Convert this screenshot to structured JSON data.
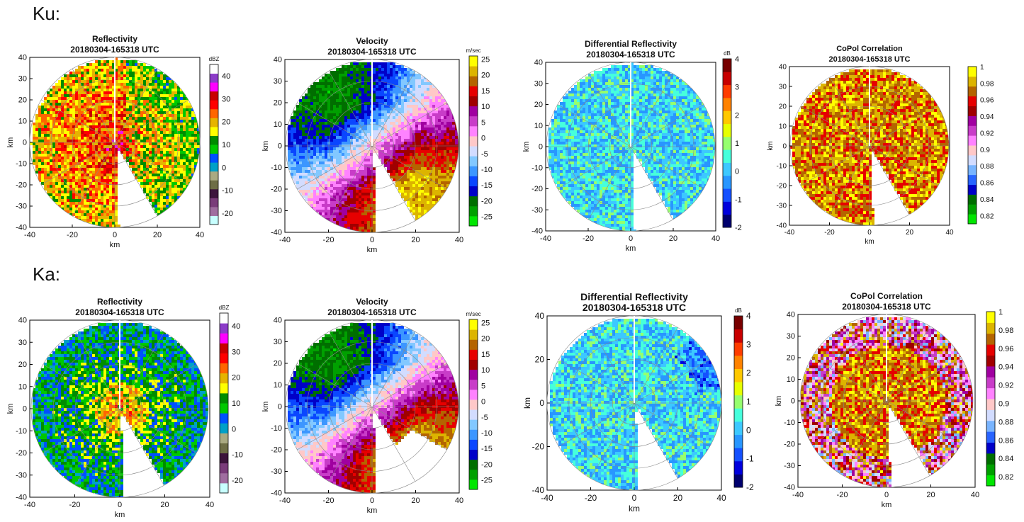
{
  "rows": [
    {
      "label": "Ku:"
    },
    {
      "label": "Ka:"
    }
  ],
  "colors": {
    "reflectivity": [
      "#c8ffff",
      "#a06ea0",
      "#7a3c7a",
      "#3c143c",
      "#6e6e46",
      "#aaaa82",
      "#00a0c8",
      "#0050ff",
      "#00c800",
      "#008c00",
      "#ffff00",
      "#e6b400",
      "#ff6600",
      "#ff0000",
      "#c80000",
      "#ff00ff",
      "#8c3cc8",
      "#ffffff"
    ],
    "velocity": [
      "#00e600",
      "#00a000",
      "#006e00",
      "#0000c8",
      "#0a46ff",
      "#3c96ff",
      "#82c8ff",
      "#d2dcff",
      "#ffc8c8",
      "#ff82ff",
      "#c83cc8",
      "#a000a0",
      "#a00000",
      "#e60000",
      "#b46400",
      "#dcb400",
      "#ffff00"
    ],
    "zdr": [
      "#00006e",
      "#0000dc",
      "#1450ff",
      "#2896ff",
      "#3cc8ff",
      "#46ffdc",
      "#96ff6e",
      "#e6ff00",
      "#ffc800",
      "#ff8200",
      "#ff3c00",
      "#c80000",
      "#780000"
    ],
    "copol": [
      "#00e600",
      "#00a000",
      "#006e00",
      "#0000c8",
      "#2864ff",
      "#78b4ff",
      "#d2dcff",
      "#ffc8c8",
      "#ff82ff",
      "#c83cc8",
      "#a000a0",
      "#a00000",
      "#e60000",
      "#b46400",
      "#dcb400",
      "#ffff00"
    ]
  },
  "chart_data": [
    {
      "type": "heatmap",
      "row": "Ku",
      "variable": "reflectivity",
      "title": "Reflectivity",
      "subtitle": "20180304-165318 UTC",
      "unit": "dBZ",
      "xlabel": "km",
      "ylabel": "km",
      "xlim": [
        -40,
        40
      ],
      "ylim": [
        -40,
        40
      ],
      "xticks": [
        -40,
        -20,
        0,
        20,
        40
      ],
      "yticks": [
        40,
        30,
        20,
        10,
        0,
        -10,
        -20,
        -30,
        -40
      ],
      "colorbar": {
        "ticks": [
          40,
          30,
          20,
          10,
          0,
          -10,
          -20
        ],
        "range": [
          -25,
          45
        ]
      }
    },
    {
      "type": "heatmap",
      "row": "Ku",
      "variable": "velocity",
      "title": "Velocity",
      "subtitle": "20180304-165318 UTC",
      "unit": "m/sec",
      "xlabel": "km",
      "ylabel": "km",
      "xlim": [
        -40,
        40
      ],
      "ylim": [
        -40,
        40
      ],
      "xticks": [
        -40,
        -20,
        0,
        20,
        40
      ],
      "yticks": [
        40,
        30,
        20,
        10,
        0,
        -10,
        -20,
        -30,
        -40
      ],
      "colorbar": {
        "ticks": [
          25,
          20,
          15,
          10,
          5,
          0,
          -5,
          -10,
          -15,
          -20,
          -25
        ],
        "range": [
          -28,
          26
        ]
      }
    },
    {
      "type": "heatmap",
      "row": "Ku",
      "variable": "zdr",
      "title": "Differential Reflectivity",
      "subtitle": "20180304-165318 UTC",
      "unit": "dB",
      "xlabel": "km",
      "ylabel": "km",
      "xlim": [
        -40,
        40
      ],
      "ylim": [
        -40,
        40
      ],
      "xticks": [
        -40,
        -20,
        0,
        20,
        40
      ],
      "yticks": [
        40,
        30,
        20,
        10,
        0,
        -10,
        -20,
        -30,
        -40
      ],
      "colorbar": {
        "ticks": [
          4,
          3,
          2,
          1,
          0,
          -1,
          -2
        ],
        "range": [
          -2,
          4
        ]
      }
    },
    {
      "type": "heatmap",
      "row": "Ku",
      "variable": "copol",
      "title": "CoPol Correlation",
      "subtitle": "20180304-165318 UTC",
      "unit": "",
      "xlabel": "km",
      "ylabel": "km",
      "xlim": [
        -40,
        40
      ],
      "ylim": [
        -40,
        40
      ],
      "xticks": [
        -40,
        -20,
        0,
        20,
        40
      ],
      "yticks": [
        40,
        30,
        20,
        10,
        0,
        -10,
        -20,
        -30,
        -40
      ],
      "colorbar": {
        "ticks": [
          "1",
          "0.98",
          "0.96",
          "0.94",
          "0.92",
          "0.9",
          "0.88",
          "0.86",
          "0.84",
          "0.82"
        ],
        "range": [
          0.81,
          1.0
        ]
      }
    },
    {
      "type": "heatmap",
      "row": "Ka",
      "variable": "reflectivity",
      "title": "Reflectivity",
      "subtitle": "20180304-165318 UTC",
      "unit": "dBZ",
      "xlabel": "km",
      "ylabel": "km",
      "xlim": [
        -40,
        40
      ],
      "ylim": [
        -40,
        40
      ],
      "xticks": [
        -40,
        -20,
        0,
        20,
        40
      ],
      "yticks": [
        40,
        30,
        20,
        10,
        0,
        -10,
        -20,
        -30,
        -40
      ],
      "colorbar": {
        "ticks": [
          40,
          30,
          20,
          10,
          0,
          -10,
          -20
        ],
        "range": [
          -25,
          45
        ]
      }
    },
    {
      "type": "heatmap",
      "row": "Ka",
      "variable": "velocity",
      "title": "Velocity",
      "subtitle": "20180304-165318 UTC",
      "unit": "m/sec",
      "xlabel": "km",
      "ylabel": "km",
      "xlim": [
        -40,
        40
      ],
      "ylim": [
        -40,
        40
      ],
      "xticks": [
        -40,
        -20,
        0,
        20,
        40
      ],
      "yticks": [
        40,
        30,
        20,
        10,
        0,
        -10,
        -20,
        -30,
        -40
      ],
      "colorbar": {
        "ticks": [
          25,
          20,
          15,
          10,
          5,
          0,
          -5,
          -10,
          -15,
          -20,
          -25
        ],
        "range": [
          -28,
          26
        ]
      }
    },
    {
      "type": "heatmap",
      "row": "Ka",
      "variable": "zdr",
      "title": "Differential Reflectivity",
      "subtitle": "20180304-165318 UTC",
      "unit": "dB",
      "xlabel": "km",
      "ylabel": "km",
      "xlim": [
        -40,
        40
      ],
      "ylim": [
        -40,
        40
      ],
      "xticks": [
        -40,
        -20,
        0,
        20,
        40
      ],
      "yticks": [
        40,
        20,
        0,
        -20,
        -40
      ],
      "colorbar": {
        "ticks": [
          4,
          3,
          2,
          1,
          0,
          -1,
          -2
        ],
        "range": [
          -2,
          4
        ]
      }
    },
    {
      "type": "heatmap",
      "row": "Ka",
      "variable": "copol",
      "title": "CoPol Correlation",
      "subtitle": "20180304-165318 UTC",
      "unit": "",
      "xlabel": "km",
      "ylabel": "km",
      "xlim": [
        -40,
        40
      ],
      "ylim": [
        -40,
        40
      ],
      "xticks": [
        -40,
        -20,
        0,
        20,
        40
      ],
      "yticks": [
        40,
        30,
        20,
        10,
        0,
        -10,
        -20,
        -30,
        -40
      ],
      "colorbar": {
        "ticks": [
          "1",
          "0.98",
          "0.96",
          "0.94",
          "0.92",
          "0.9",
          "0.88",
          "0.86",
          "0.84",
          "0.82"
        ],
        "range": [
          0.81,
          1.0
        ]
      }
    }
  ]
}
